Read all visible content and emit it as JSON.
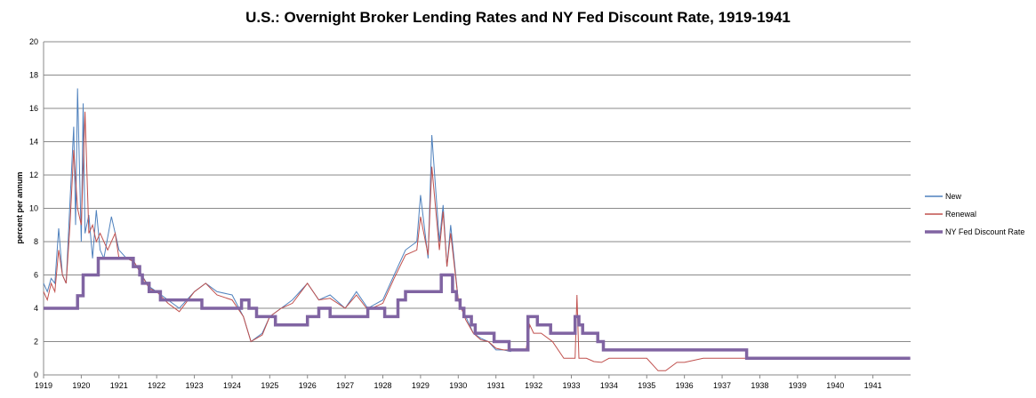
{
  "chart_data": {
    "type": "line",
    "title": "U.S.: Overnight Broker Lending Rates and NY Fed Discount Rate, 1919-1941",
    "xlabel": "",
    "ylabel": "percent per annum",
    "xlim": [
      1919,
      1942
    ],
    "ylim": [
      0,
      20
    ],
    "yticks": [
      0,
      2,
      4,
      6,
      8,
      10,
      12,
      14,
      16,
      18,
      20
    ],
    "xtick_labels": [
      "1919",
      "1920",
      "1921",
      "1922",
      "1923",
      "1924",
      "1925",
      "1926",
      "1927",
      "1928",
      "1929",
      "1930",
      "1931",
      "1932",
      "1933",
      "1934",
      "1935",
      "1936",
      "1937",
      "1938",
      "1939",
      "1940",
      "1941"
    ],
    "grid": "horizontal",
    "legend_position": "right",
    "series": [
      {
        "name": "New",
        "color": "#4f81bd",
        "x": [
          1919.0,
          1919.1,
          1919.2,
          1919.3,
          1919.4,
          1919.5,
          1919.6,
          1919.7,
          1919.8,
          1919.85,
          1919.9,
          1920.0,
          1920.05,
          1920.1,
          1920.2,
          1920.3,
          1920.4,
          1920.5,
          1920.6,
          1920.8,
          1921.0,
          1921.2,
          1921.4,
          1921.6,
          1921.8,
          1922.0,
          1922.3,
          1922.6,
          1923.0,
          1923.3,
          1923.6,
          1924.0,
          1924.3,
          1924.5,
          1924.8,
          1925.0,
          1925.3,
          1925.6,
          1926.0,
          1926.3,
          1926.6,
          1927.0,
          1927.3,
          1927.6,
          1928.0,
          1928.3,
          1928.6,
          1928.9,
          1929.0,
          1929.2,
          1929.3,
          1929.5,
          1929.6,
          1929.7,
          1929.8,
          1930.0,
          1930.2,
          1930.4,
          1930.6,
          1930.8,
          1931.0,
          1931.2,
          1931.4
        ],
        "y": [
          5.5,
          5.0,
          5.8,
          5.5,
          8.8,
          6.0,
          5.5,
          10.4,
          14.9,
          9.0,
          17.2,
          8.0,
          16.3,
          8.5,
          9.6,
          7.0,
          9.9,
          7.5,
          7.0,
          9.5,
          7.5,
          7.0,
          6.8,
          6.0,
          5.3,
          5.0,
          4.5,
          4.0,
          5.0,
          5.5,
          5.0,
          4.8,
          3.5,
          2.0,
          2.5,
          3.5,
          4.0,
          4.5,
          5.5,
          4.5,
          4.8,
          4.0,
          5.0,
          4.0,
          4.5,
          6.0,
          7.5,
          8.0,
          10.8,
          7.0,
          14.4,
          8.0,
          10.2,
          6.5,
          9.0,
          4.5,
          3.5,
          2.5,
          2.2,
          2.0,
          1.5,
          1.5,
          1.4
        ]
      },
      {
        "name": "Renewal",
        "color": "#c0504d",
        "x": [
          1919.0,
          1919.1,
          1919.2,
          1919.3,
          1919.4,
          1919.5,
          1919.6,
          1919.7,
          1919.8,
          1919.9,
          1920.0,
          1920.1,
          1920.2,
          1920.3,
          1920.4,
          1920.5,
          1920.7,
          1920.9,
          1921.0,
          1921.2,
          1921.4,
          1921.6,
          1921.8,
          1922.0,
          1922.3,
          1922.6,
          1923.0,
          1923.3,
          1923.6,
          1924.0,
          1924.3,
          1924.5,
          1924.8,
          1925.0,
          1925.3,
          1925.6,
          1926.0,
          1926.3,
          1926.6,
          1927.0,
          1927.3,
          1927.6,
          1928.0,
          1928.3,
          1928.6,
          1928.9,
          1929.0,
          1929.2,
          1929.3,
          1929.5,
          1929.6,
          1929.7,
          1929.8,
          1930.0,
          1930.2,
          1930.4,
          1930.6,
          1930.8,
          1931.0,
          1931.2,
          1931.5,
          1931.8,
          1931.9,
          1932.0,
          1932.2,
          1932.5,
          1932.8,
          1933.0,
          1933.1,
          1933.15,
          1933.2,
          1933.4,
          1933.6,
          1933.8,
          1934.0,
          1934.5,
          1935.0,
          1935.3,
          1935.5,
          1935.8,
          1936.0,
          1936.5,
          1937.0,
          1937.5,
          1938.0,
          1938.5,
          1939.0,
          1939.5,
          1940.0,
          1940.5,
          1941.0,
          1941.5,
          1941.99
        ],
        "y": [
          5.0,
          4.5,
          5.5,
          5.0,
          7.5,
          6.0,
          5.5,
          9.0,
          13.5,
          10.0,
          9.0,
          15.8,
          8.5,
          9.0,
          8.0,
          8.5,
          7.5,
          8.5,
          7.0,
          7.0,
          6.8,
          6.0,
          5.2,
          5.0,
          4.3,
          3.8,
          5.0,
          5.5,
          4.8,
          4.5,
          3.5,
          2.0,
          2.4,
          3.5,
          4.0,
          4.3,
          5.5,
          4.5,
          4.6,
          4.0,
          4.8,
          3.9,
          4.3,
          5.8,
          7.2,
          7.5,
          9.5,
          7.2,
          12.5,
          7.5,
          9.8,
          6.5,
          8.5,
          4.5,
          3.3,
          2.5,
          2.1,
          2.0,
          1.6,
          1.5,
          1.5,
          1.5,
          3.0,
          2.5,
          2.5,
          2.0,
          1.0,
          1.0,
          1.0,
          4.8,
          1.0,
          1.0,
          0.8,
          0.75,
          1.0,
          1.0,
          1.0,
          0.25,
          0.25,
          0.75,
          0.75,
          1.0,
          1.0,
          1.0,
          1.0,
          1.0,
          1.0,
          1.0,
          1.0,
          1.0,
          1.0,
          1.0,
          1.0
        ]
      },
      {
        "name": "NY Fed Discount Rate",
        "color": "#8064a2",
        "step": true,
        "x": [
          1919.0,
          1919.9,
          1920.05,
          1920.45,
          1921.38,
          1921.55,
          1921.62,
          1921.8,
          1922.1,
          1923.2,
          1924.25,
          1924.45,
          1924.65,
          1925.15,
          1926.0,
          1926.3,
          1926.6,
          1927.6,
          1928.05,
          1928.4,
          1928.6,
          1929.55,
          1929.85,
          1929.95,
          1930.05,
          1930.15,
          1930.35,
          1930.45,
          1930.95,
          1931.35,
          1931.85,
          1932.1,
          1932.45,
          1933.1,
          1933.2,
          1933.3,
          1933.7,
          1933.85,
          1934.0,
          1935.0,
          1936.0,
          1937.65,
          1938.0,
          1939.0,
          1941.99
        ],
        "y": [
          4.0,
          4.75,
          6.0,
          7.0,
          6.5,
          6.0,
          5.5,
          5.0,
          4.5,
          4.0,
          4.5,
          4.0,
          3.5,
          3.0,
          3.5,
          4.0,
          3.5,
          4.0,
          3.5,
          4.5,
          5.0,
          6.0,
          5.0,
          4.5,
          4.0,
          3.5,
          3.0,
          2.5,
          2.0,
          1.5,
          3.5,
          3.0,
          2.5,
          3.5,
          3.0,
          2.5,
          2.0,
          1.5,
          1.5,
          1.5,
          1.5,
          1.0,
          1.0,
          1.0,
          1.0
        ]
      }
    ]
  }
}
